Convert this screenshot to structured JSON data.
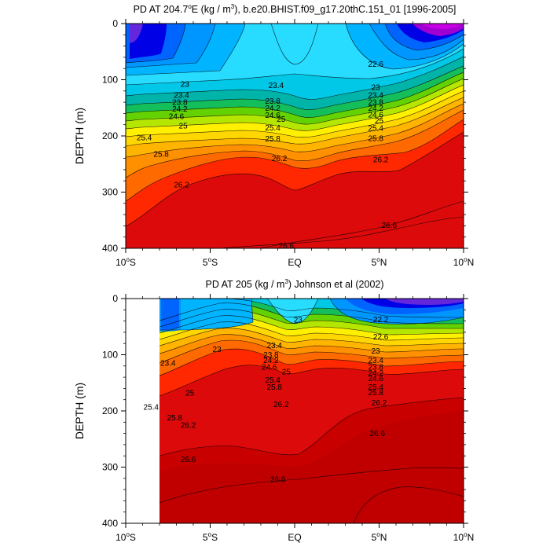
{
  "chart_data": [
    {
      "type": "filled-contour",
      "title_prefix": "PD AT 204.7",
      "title_degree": "o",
      "title_suffix": "E (kg / m",
      "title_unit_sup": "3",
      "title_rest": "), b.e20.BHIST.f09_g17.20thC.151_01 [1996-2005]",
      "ylabel": "DEPTH (m)",
      "ylim": [
        400,
        0
      ],
      "yticks": [
        0,
        100,
        200,
        300,
        400
      ],
      "xlim": [
        -10,
        10
      ],
      "xticks": [
        {
          "x": -10,
          "label": "10",
          "sup": "o",
          "suffix": "S"
        },
        {
          "x": -5,
          "label": "5",
          "sup": "o",
          "suffix": "S"
        },
        {
          "x": 0,
          "label": "EQ",
          "sup": "",
          "suffix": ""
        },
        {
          "x": 5,
          "label": "5",
          "sup": "o",
          "suffix": "N"
        },
        {
          "x": 10,
          "label": "10",
          "sup": "o",
          "suffix": "N"
        }
      ],
      "data_xrange": [
        -10,
        10
      ],
      "contour_labels": [
        {
          "x": 4.8,
          "depth": 72,
          "text": "22.6"
        },
        {
          "x": -6.5,
          "depth": 108,
          "text": "23"
        },
        {
          "x": -6.7,
          "depth": 127,
          "text": "23.4"
        },
        {
          "x": -1.1,
          "depth": 110,
          "text": "23.4"
        },
        {
          "x": 4.8,
          "depth": 113,
          "text": "23"
        },
        {
          "x": 4.8,
          "depth": 127,
          "text": "23.4"
        },
        {
          "x": -6.8,
          "depth": 140,
          "text": "23.8"
        },
        {
          "x": -1.3,
          "depth": 138,
          "text": "23.8"
        },
        {
          "x": 4.8,
          "depth": 140,
          "text": "23.8"
        },
        {
          "x": -6.8,
          "depth": 152,
          "text": "24.2"
        },
        {
          "x": -1.3,
          "depth": 150,
          "text": "24.2"
        },
        {
          "x": 4.8,
          "depth": 150,
          "text": "24.2"
        },
        {
          "x": -7.0,
          "depth": 165,
          "text": "24.6"
        },
        {
          "x": -1.3,
          "depth": 163,
          "text": "24.6"
        },
        {
          "x": 4.8,
          "depth": 162,
          "text": "24.6"
        },
        {
          "x": -6.6,
          "depth": 182,
          "text": "25"
        },
        {
          "x": -0.8,
          "depth": 170,
          "text": "25"
        },
        {
          "x": 5.0,
          "depth": 173,
          "text": "25"
        },
        {
          "x": -8.9,
          "depth": 203,
          "text": "25.4"
        },
        {
          "x": -1.3,
          "depth": 185,
          "text": "25.4"
        },
        {
          "x": 4.8,
          "depth": 186,
          "text": "25.4"
        },
        {
          "x": -7.9,
          "depth": 232,
          "text": "25.8"
        },
        {
          "x": -1.3,
          "depth": 205,
          "text": "25.8"
        },
        {
          "x": 4.8,
          "depth": 204,
          "text": "25.8"
        },
        {
          "x": -0.9,
          "depth": 240,
          "text": "26.2"
        },
        {
          "x": 5.1,
          "depth": 242,
          "text": "26.2"
        },
        {
          "x": -6.7,
          "depth": 287,
          "text": "26.2"
        },
        {
          "x": 5.6,
          "depth": 359,
          "text": "26.6"
        },
        {
          "x": -0.5,
          "depth": 395,
          "text": "26.6"
        }
      ]
    },
    {
      "type": "filled-contour",
      "title": "PD AT 205 (kg / m",
      "title_unit_sup": "3",
      "title_rest": ") Johnson et al (2002)",
      "ylabel": "DEPTH (m)",
      "ylim": [
        400,
        0
      ],
      "yticks": [
        0,
        100,
        200,
        300,
        400
      ],
      "xlim": [
        -10,
        10
      ],
      "xticks": [
        {
          "x": -10,
          "label": "10",
          "sup": "o",
          "suffix": "S"
        },
        {
          "x": -5,
          "label": "5",
          "sup": "o",
          "suffix": "S"
        },
        {
          "x": 0,
          "label": "EQ",
          "sup": "",
          "suffix": ""
        },
        {
          "x": 5,
          "label": "5",
          "sup": "o",
          "suffix": "N"
        },
        {
          "x": 10,
          "label": "10",
          "sup": "o",
          "suffix": "N"
        }
      ],
      "data_xrange": [
        -8,
        10
      ],
      "contour_labels": [
        {
          "x": 5.1,
          "depth": 37,
          "text": "22.2"
        },
        {
          "x": 5.1,
          "depth": 68,
          "text": "22.6"
        },
        {
          "x": 0.2,
          "depth": 38,
          "text": "23"
        },
        {
          "x": -4.6,
          "depth": 90,
          "text": "23"
        },
        {
          "x": 4.8,
          "depth": 93,
          "text": "23"
        },
        {
          "x": -7.5,
          "depth": 115,
          "text": "23.4"
        },
        {
          "x": -1.2,
          "depth": 83,
          "text": "23.4"
        },
        {
          "x": 4.8,
          "depth": 110,
          "text": "23.4"
        },
        {
          "x": -1.4,
          "depth": 100,
          "text": "23.8"
        },
        {
          "x": 4.8,
          "depth": 122,
          "text": "23.8"
        },
        {
          "x": -1.4,
          "depth": 110,
          "text": "24.2"
        },
        {
          "x": 4.8,
          "depth": 132,
          "text": "24.2"
        },
        {
          "x": -1.5,
          "depth": 122,
          "text": "24.6"
        },
        {
          "x": 4.8,
          "depth": 142,
          "text": "24.6"
        },
        {
          "x": -0.5,
          "depth": 130,
          "text": "25"
        },
        {
          "x": -6.2,
          "depth": 168,
          "text": "25"
        },
        {
          "x": -1.3,
          "depth": 145,
          "text": "25.4"
        },
        {
          "x": -8.5,
          "depth": 193,
          "text": "25.4"
        },
        {
          "x": 4.8,
          "depth": 157,
          "text": "25.4"
        },
        {
          "x": -1.2,
          "depth": 157,
          "text": "25.8"
        },
        {
          "x": -7.1,
          "depth": 212,
          "text": "25.8"
        },
        {
          "x": 4.8,
          "depth": 167,
          "text": "25.8"
        },
        {
          "x": -6.3,
          "depth": 225,
          "text": "26.2"
        },
        {
          "x": -0.8,
          "depth": 188,
          "text": "26.2"
        },
        {
          "x": 5.0,
          "depth": 185,
          "text": "26.2"
        },
        {
          "x": 4.9,
          "depth": 240,
          "text": "26.6"
        },
        {
          "x": -6.3,
          "depth": 286,
          "text": "26.6"
        },
        {
          "x": -1.0,
          "depth": 322,
          "text": "26.6"
        }
      ]
    }
  ]
}
